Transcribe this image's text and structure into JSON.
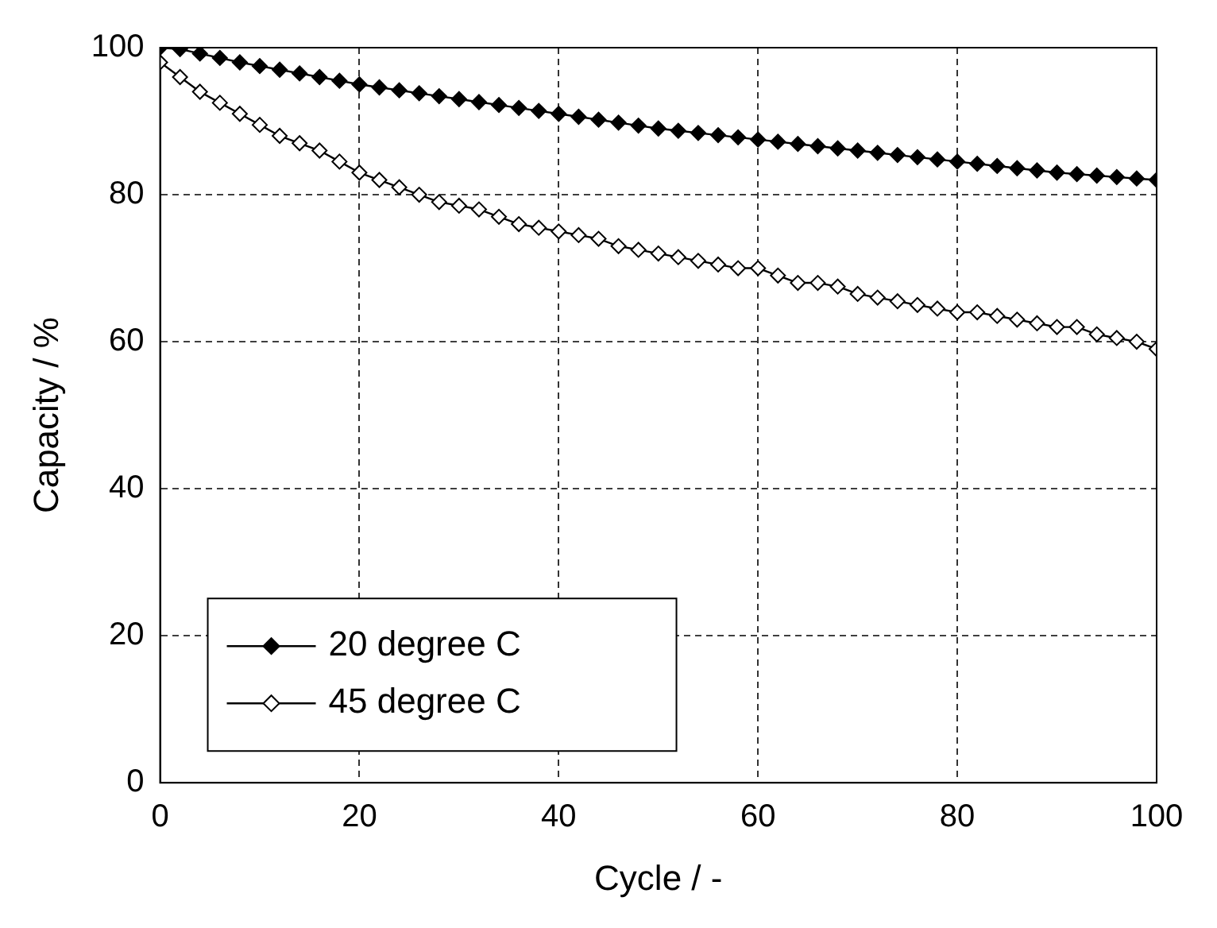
{
  "chart_data": {
    "type": "line",
    "xlabel": "Cycle / -",
    "ylabel": "Capacity / %",
    "x": [
      0,
      2,
      4,
      6,
      8,
      10,
      12,
      14,
      16,
      18,
      20,
      22,
      24,
      26,
      28,
      30,
      32,
      34,
      36,
      38,
      40,
      42,
      44,
      46,
      48,
      50,
      52,
      54,
      56,
      58,
      60,
      62,
      64,
      66,
      68,
      70,
      72,
      74,
      76,
      78,
      80,
      82,
      84,
      86,
      88,
      90,
      92,
      94,
      96,
      98,
      100
    ],
    "series": [
      {
        "name": "20 degree C",
        "color": "#000000",
        "marker": "diamond",
        "values": [
          100,
          99.8,
          99.2,
          98.6,
          98.0,
          97.5,
          97.0,
          96.5,
          96.0,
          95.5,
          95.0,
          94.6,
          94.2,
          93.8,
          93.4,
          93.0,
          92.6,
          92.2,
          91.8,
          91.4,
          91.0,
          90.6,
          90.2,
          89.8,
          89.4,
          89.0,
          88.7,
          88.4,
          88.1,
          87.8,
          87.5,
          87.2,
          86.9,
          86.6,
          86.3,
          86.0,
          85.7,
          85.4,
          85.1,
          84.8,
          84.5,
          84.2,
          83.9,
          83.6,
          83.3,
          83.0,
          82.8,
          82.6,
          82.4,
          82.2,
          82.0
        ]
      },
      {
        "name": "45 degree C",
        "color": "#000000",
        "marker": "diamond",
        "values": [
          98,
          96,
          94,
          92.5,
          91,
          89.5,
          88,
          87,
          86,
          84.5,
          83,
          82,
          81,
          80,
          79,
          78.5,
          78,
          77,
          76,
          75.5,
          75,
          74.5,
          74,
          73,
          72.5,
          72,
          71.5,
          71,
          70.5,
          70,
          70,
          69,
          68,
          68,
          67.5,
          66.5,
          66,
          65.5,
          65,
          64.5,
          64,
          64,
          63.5,
          63,
          62.5,
          62,
          62,
          61,
          60.5,
          60,
          59
        ]
      }
    ],
    "xlim": [
      0,
      100
    ],
    "xticks": [
      0,
      20,
      40,
      60,
      80,
      100
    ],
    "ylim": [
      0,
      100
    ],
    "yticks": [
      0,
      20,
      40,
      60,
      80,
      100
    ],
    "grid": true,
    "legend": "bottom left",
    "line_style": "solid"
  }
}
